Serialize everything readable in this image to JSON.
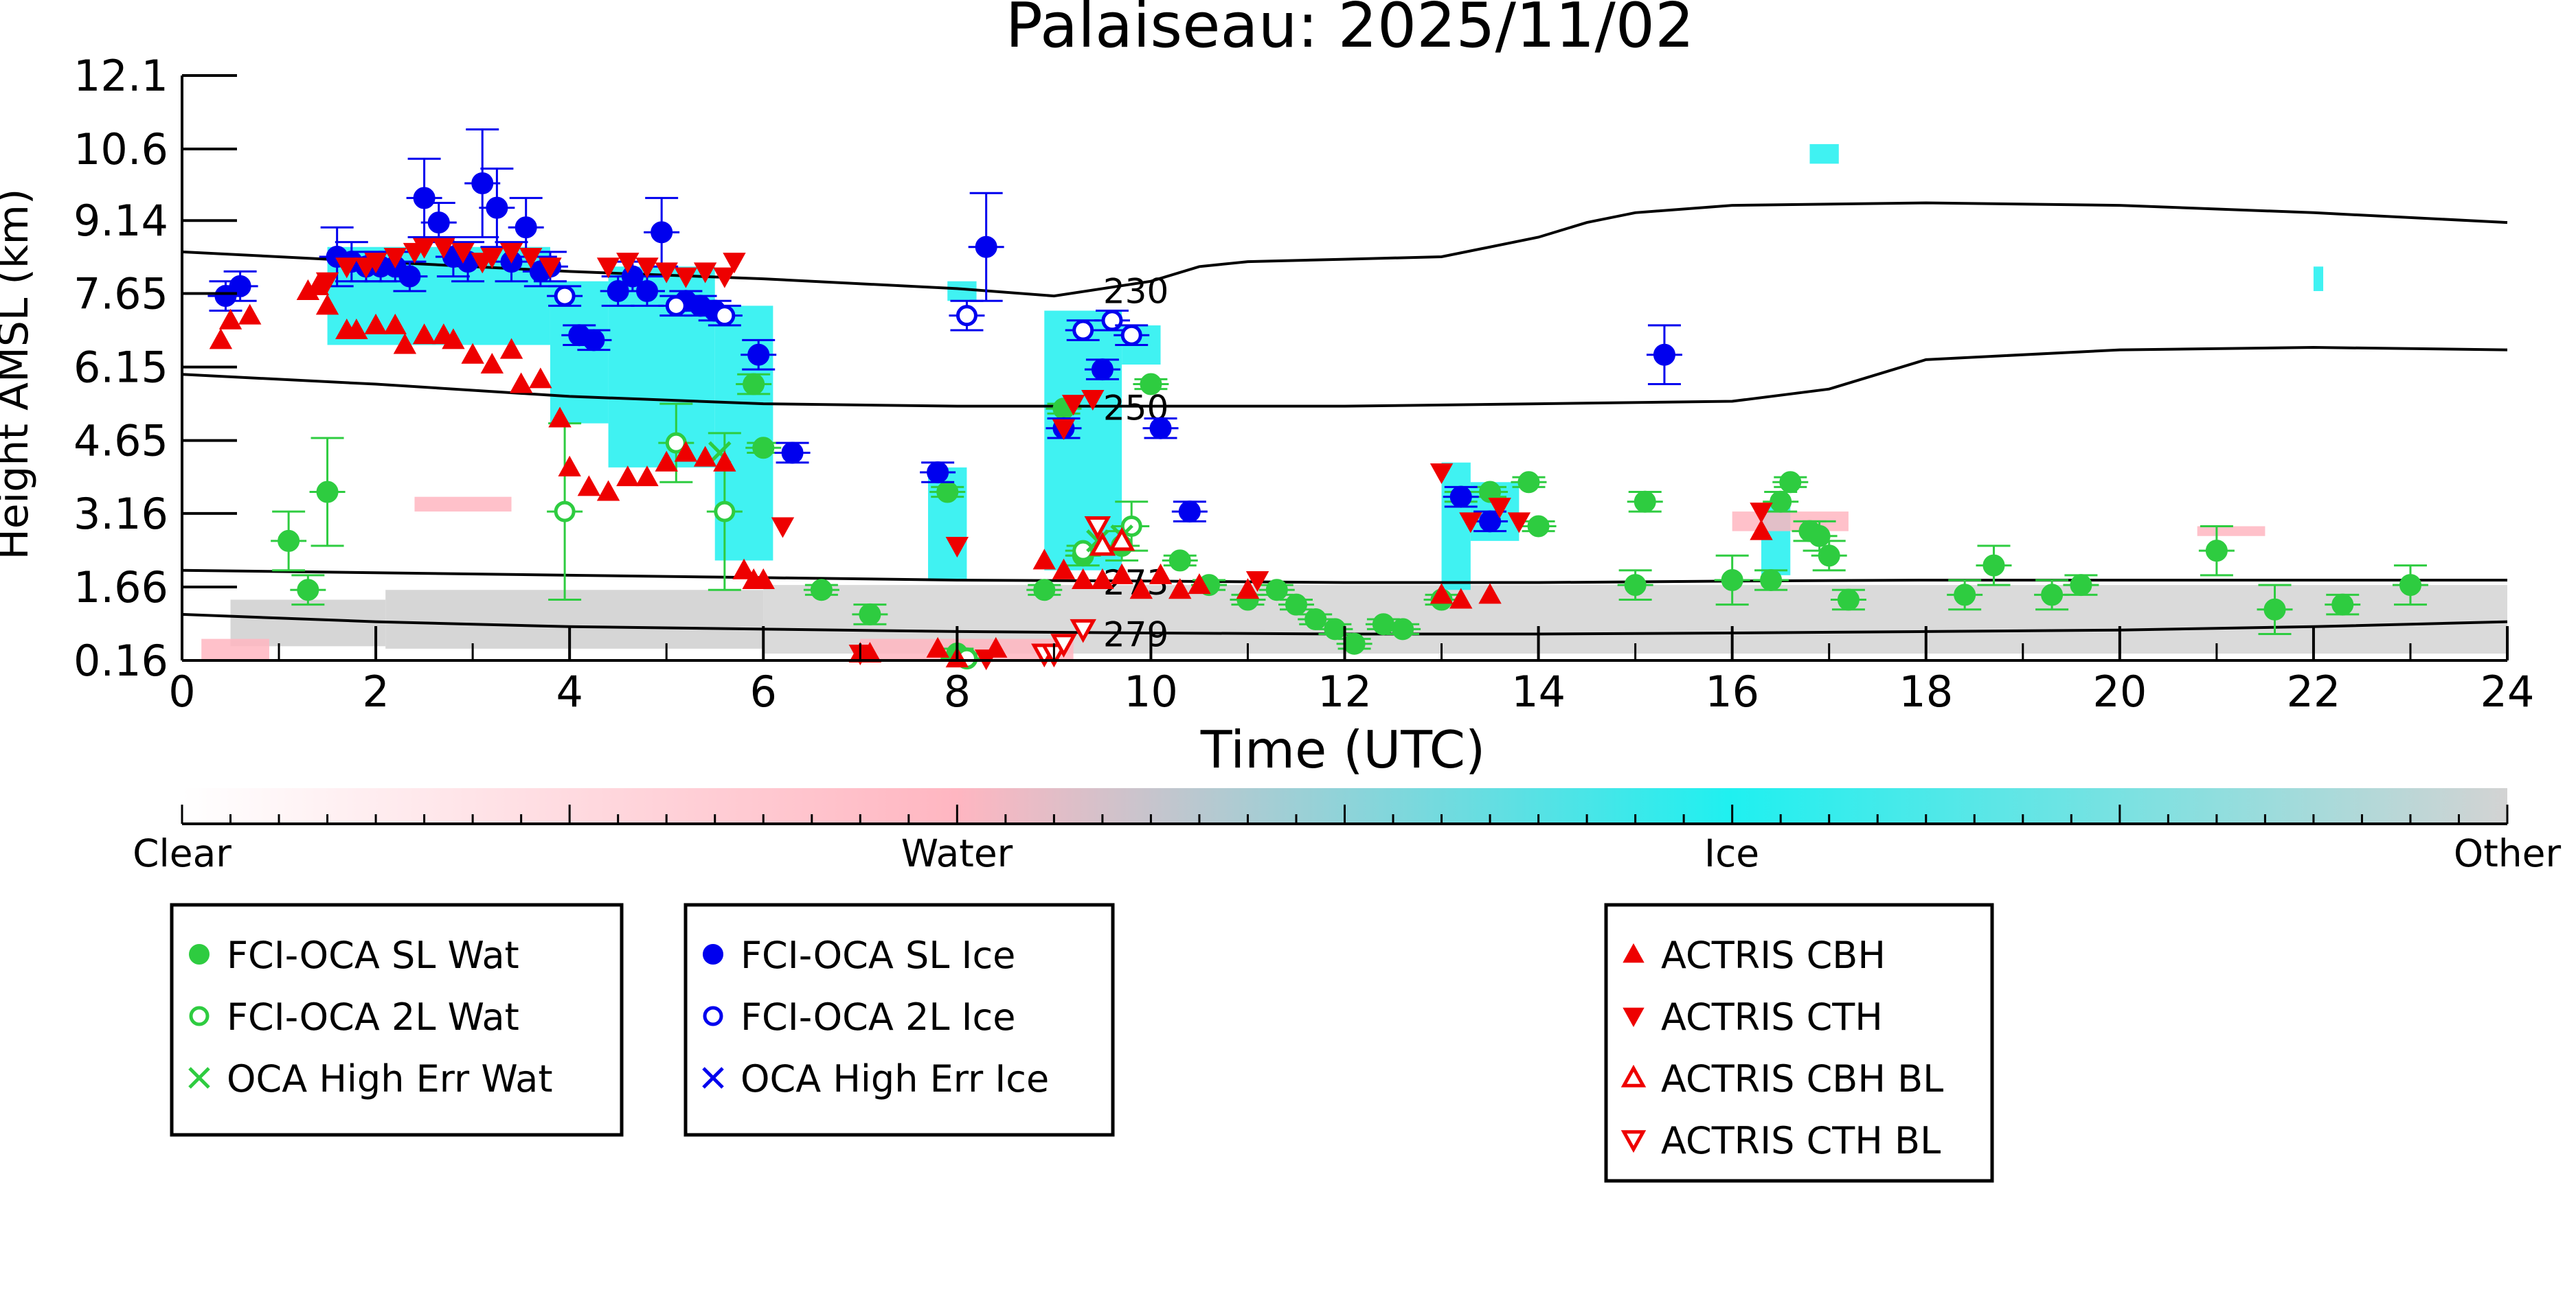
{
  "chart_data": {
    "type": "scatter",
    "title": "Palaiseau: 2025/11/02",
    "xlabel": "Time (UTC)",
    "ylabel": "Height AMSL (km)",
    "xlim": [
      0,
      24
    ],
    "ylim": [
      0.16,
      12.1
    ],
    "x_ticks": [
      "0",
      "2",
      "4",
      "6",
      "8",
      "10",
      "12",
      "14",
      "16",
      "18",
      "20",
      "22",
      "24"
    ],
    "y_ticks": [
      "0.16",
      "1.66",
      "3.16",
      "4.65",
      "6.15",
      "7.65",
      "9.14",
      "10.6",
      "12.1"
    ],
    "colorbar": {
      "labels": [
        "Clear",
        "Water",
        "Ice",
        "Other"
      ],
      "colors": [
        "#ffffff",
        "#ffb6c1",
        "#1ff0f0",
        "#d3d3d3"
      ]
    },
    "temperature_contours": [
      {
        "label": "230",
        "x": [
          0,
          2,
          4,
          6,
          8,
          9,
          10,
          10.5,
          11,
          12,
          13,
          14,
          14.5,
          15,
          16,
          18,
          20,
          22,
          24
        ],
        "y": [
          8.5,
          8.3,
          8.1,
          7.95,
          7.75,
          7.6,
          7.9,
          8.2,
          8.3,
          8.35,
          8.4,
          8.8,
          9.1,
          9.3,
          9.45,
          9.5,
          9.45,
          9.3,
          9.1
        ]
      },
      {
        "label": "250",
        "x": [
          0,
          2,
          4,
          6,
          8,
          10,
          12,
          14,
          16,
          17,
          18,
          20,
          22,
          24
        ],
        "y": [
          6.0,
          5.8,
          5.55,
          5.4,
          5.35,
          5.35,
          5.35,
          5.4,
          5.45,
          5.7,
          6.3,
          6.5,
          6.55,
          6.5
        ]
      },
      {
        "label": "273",
        "x": [
          0,
          2,
          4,
          6,
          8,
          10,
          12,
          14,
          16,
          18,
          20,
          22,
          24
        ],
        "y": [
          2.0,
          1.95,
          1.9,
          1.85,
          1.8,
          1.78,
          1.75,
          1.75,
          1.78,
          1.8,
          1.8,
          1.8,
          1.8
        ]
      },
      {
        "label": "279",
        "x": [
          0,
          2,
          4,
          6,
          8,
          10,
          12,
          14,
          16,
          18,
          20,
          22,
          24
        ],
        "y": [
          1.1,
          0.95,
          0.85,
          0.8,
          0.75,
          0.72,
          0.7,
          0.7,
          0.72,
          0.75,
          0.78,
          0.85,
          0.95
        ]
      }
    ],
    "series": [
      {
        "name": "FCI-OCA SL Wat",
        "marker": "filled-circle",
        "color": "#2ecc40",
        "x": [
          1.1,
          1.3,
          1.5,
          5.9,
          6.0,
          6.6,
          7.1,
          7.9,
          8.0,
          8.1,
          8.9,
          9.1,
          9.3,
          9.7,
          10.0,
          10.3,
          10.6,
          11.0,
          11.3,
          11.5,
          11.7,
          11.9,
          12.1,
          12.4,
          12.6,
          13.0,
          13.2,
          13.5,
          13.9,
          14.0,
          15.1,
          15.0,
          16.0,
          16.4,
          16.5,
          16.6,
          16.8,
          16.9,
          17.0,
          17.2,
          18.4,
          18.7,
          19.3,
          19.6,
          21.0,
          21.6,
          22.3,
          23.0
        ],
        "y": [
          2.6,
          1.6,
          3.6,
          5.8,
          4.5,
          1.6,
          1.1,
          3.6,
          0.3,
          0.2,
          1.6,
          5.3,
          2.3,
          2.5,
          5.8,
          2.2,
          1.7,
          1.4,
          1.6,
          1.3,
          1.0,
          0.8,
          0.5,
          0.9,
          0.8,
          1.4,
          3.5,
          3.6,
          3.8,
          2.9,
          3.4,
          1.7,
          1.8,
          1.8,
          3.4,
          3.8,
          2.8,
          2.7,
          2.3,
          1.4,
          1.5,
          2.1,
          1.5,
          1.7,
          2.4,
          1.2,
          1.3,
          1.7
        ],
        "yerr": [
          0.6,
          0.3,
          1.1,
          0.2,
          0.1,
          0.1,
          0.2,
          0.1,
          0.1,
          0.1,
          0.1,
          0.1,
          0.2,
          0.3,
          0.1,
          0.1,
          0.1,
          0.1,
          0.1,
          0.1,
          0.1,
          0.1,
          0.1,
          0.1,
          0.1,
          0.1,
          0.1,
          0.1,
          0.1,
          0.1,
          0.2,
          0.3,
          0.5,
          0.2,
          0.2,
          0.1,
          0.2,
          0.3,
          0.3,
          0.2,
          0.3,
          0.4,
          0.3,
          0.2,
          0.5,
          0.5,
          0.2,
          0.4
        ]
      },
      {
        "name": "FCI-OCA 2L Wat",
        "marker": "open-circle",
        "color": "#2ecc40",
        "x": [
          3.95,
          5.1,
          5.6,
          8.1,
          9.3,
          9.8
        ],
        "y": [
          3.2,
          4.6,
          3.2,
          0.2,
          2.4,
          2.9
        ],
        "yerr": [
          1.8,
          0.8,
          1.6,
          0.1,
          0.1,
          0.5
        ]
      },
      {
        "name": "OCA High Err Wat",
        "marker": "cross",
        "color": "#2ecc40",
        "x": [
          5.55,
          9.45,
          9.7
        ],
        "y": [
          4.4,
          2.6,
          2.7
        ]
      },
      {
        "name": "FCI-OCA SL Ice",
        "marker": "filled-circle",
        "color": "#0000ee",
        "x": [
          0.45,
          0.6,
          1.6,
          1.75,
          1.9,
          2.05,
          2.2,
          2.35,
          2.5,
          2.65,
          2.8,
          2.95,
          3.1,
          3.25,
          3.4,
          3.55,
          3.7,
          3.8,
          4.1,
          4.25,
          4.5,
          4.65,
          4.8,
          4.95,
          5.2,
          5.35,
          5.5,
          5.95,
          6.3,
          7.8,
          8.3,
          9.1,
          9.5,
          10.1,
          10.4,
          13.2,
          13.5,
          15.3
        ],
        "y": [
          7.6,
          7.8,
          8.4,
          8.3,
          8.2,
          8.2,
          8.2,
          8.0,
          9.6,
          9.1,
          8.4,
          8.3,
          9.9,
          9.4,
          8.3,
          9.0,
          8.1,
          8.2,
          6.8,
          6.7,
          7.7,
          8.0,
          7.7,
          8.9,
          7.5,
          7.4,
          7.3,
          6.4,
          4.4,
          4.0,
          8.6,
          4.9,
          6.1,
          4.9,
          3.2,
          3.5,
          3.0,
          6.4
        ],
        "yerr": [
          0.3,
          0.3,
          0.6,
          0.4,
          0.3,
          0.3,
          0.3,
          0.3,
          0.8,
          0.4,
          0.4,
          0.4,
          1.1,
          0.8,
          0.4,
          0.6,
          0.3,
          0.3,
          0.2,
          0.2,
          0.3,
          0.3,
          0.3,
          0.7,
          0.2,
          0.2,
          0.2,
          0.3,
          0.2,
          0.2,
          1.1,
          0.2,
          0.2,
          0.2,
          0.2,
          0.2,
          0.2,
          0.6
        ]
      },
      {
        "name": "FCI-OCA 2L Ice",
        "marker": "open-circle",
        "color": "#0000ee",
        "x": [
          3.95,
          5.1,
          5.6,
          8.1,
          9.3,
          9.6,
          9.8
        ],
        "y": [
          7.6,
          7.4,
          7.2,
          7.2,
          6.9,
          7.1,
          6.8
        ],
        "yerr": [
          0.2,
          0.2,
          0.2,
          0.3,
          0.2,
          0.2,
          0.2
        ]
      },
      {
        "name": "OCA High Err Ice",
        "marker": "cross",
        "color": "#0000ee",
        "x": [],
        "y": []
      },
      {
        "name": "ACTRIS CBH",
        "marker": "filled-triangle-up",
        "color": "#ee0000",
        "x": [
          0.4,
          0.5,
          0.7,
          1.3,
          1.4,
          1.5,
          1.7,
          1.8,
          2.0,
          2.2,
          2.3,
          2.5,
          2.7,
          2.8,
          3.0,
          3.2,
          3.4,
          3.5,
          3.7,
          3.9,
          4.0,
          4.2,
          4.4,
          4.6,
          4.8,
          5.0,
          5.2,
          5.4,
          5.6,
          5.8,
          5.9,
          6.0,
          7.0,
          7.1,
          7.8,
          8.0,
          8.4,
          8.9,
          9.1,
          9.3,
          9.5,
          9.7,
          9.9,
          10.1,
          10.3,
          10.5,
          11.0,
          13.0,
          13.2,
          13.5,
          16.3
        ],
        "y": [
          6.7,
          7.1,
          7.2,
          7.7,
          7.8,
          7.4,
          6.9,
          6.9,
          7.0,
          7.0,
          6.6,
          6.8,
          6.8,
          6.7,
          6.4,
          6.2,
          6.5,
          5.8,
          5.9,
          5.1,
          4.1,
          3.7,
          3.6,
          3.9,
          3.9,
          4.2,
          4.4,
          4.3,
          4.2,
          2.0,
          1.8,
          1.8,
          0.3,
          0.3,
          0.4,
          0.2,
          0.4,
          2.2,
          2.0,
          1.8,
          1.8,
          1.9,
          1.6,
          1.9,
          1.6,
          1.7,
          1.6,
          1.5,
          1.4,
          1.5,
          2.8
        ]
      },
      {
        "name": "ACTRIS CTH",
        "marker": "filled-triangle-down",
        "color": "#ee0000",
        "x": [
          1.5,
          1.7,
          1.9,
          2.0,
          2.2,
          2.4,
          2.5,
          2.7,
          2.9,
          3.1,
          3.2,
          3.4,
          3.6,
          3.8,
          4.4,
          4.6,
          4.8,
          5.0,
          5.2,
          5.4,
          5.6,
          5.7,
          6.2,
          7.0,
          8.0,
          8.3,
          9.1,
          9.2,
          9.4,
          11.1,
          13.0,
          13.3,
          13.6,
          13.8,
          16.3
        ],
        "y": [
          7.9,
          8.2,
          8.2,
          8.3,
          8.4,
          8.5,
          8.6,
          8.6,
          8.5,
          8.3,
          8.4,
          8.5,
          8.4,
          8.2,
          8.2,
          8.3,
          8.2,
          8.1,
          8.0,
          8.1,
          8.0,
          8.3,
          2.9,
          0.3,
          2.5,
          0.2,
          4.9,
          5.4,
          5.5,
          1.8,
          4.0,
          3.0,
          3.3,
          3.0,
          3.2
        ]
      },
      {
        "name": "ACTRIS CBH BL",
        "marker": "open-triangle-up",
        "color": "#ee0000",
        "x": [
          9.5,
          9.7
        ],
        "y": [
          2.5,
          2.6
        ]
      },
      {
        "name": "ACTRIS CTH BL",
        "marker": "open-triangle-down",
        "color": "#ee0000",
        "x": [
          8.9,
          9.0,
          9.1,
          9.3,
          9.45
        ],
        "y": [
          0.3,
          0.3,
          0.5,
          0.8,
          2.9
        ]
      }
    ],
    "legends": [
      {
        "entries": [
          "FCI-OCA SL Wat",
          "FCI-OCA 2L Wat",
          "OCA High Err Wat"
        ]
      },
      {
        "entries": [
          "FCI-OCA SL Ice",
          "FCI-OCA 2L Ice",
          "OCA High Err Ice"
        ]
      },
      {
        "entries": [
          "ACTRIS CBH",
          "ACTRIS CTH",
          "ACTRIS CBH BL",
          "ACTRIS CTH BL"
        ]
      }
    ],
    "grid": false
  }
}
